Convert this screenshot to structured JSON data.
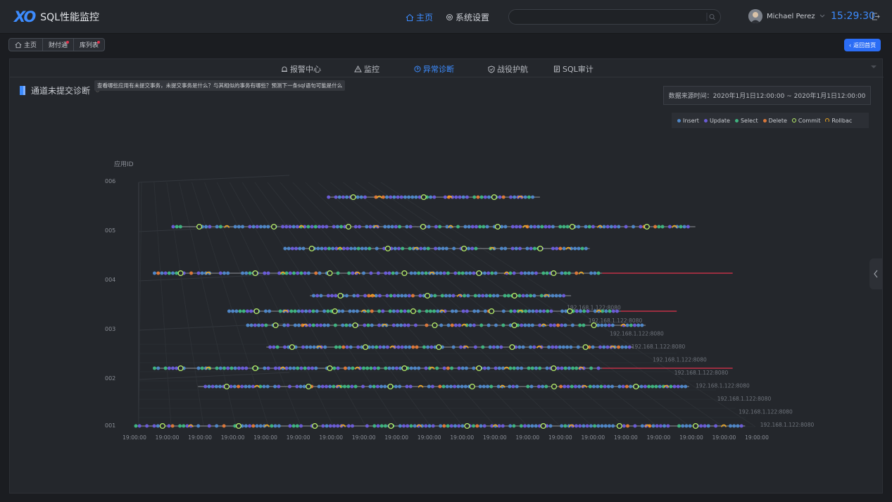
{
  "app": {
    "logo": "XO",
    "title": "SQL性能监控"
  },
  "nav": [
    {
      "label": "主页",
      "icon": "home-icon",
      "active": true
    },
    {
      "label": "系统设置",
      "icon": "gear-icon",
      "active": false
    }
  ],
  "search": {
    "placeholder": ""
  },
  "user": {
    "name": "Michael Perez",
    "time": "15:29:30"
  },
  "breadcrumb": [
    "主页",
    "财付通",
    "库列表"
  ],
  "back_label": "返回首页",
  "tabs": [
    {
      "label": "报警中心",
      "icon": "alarm-icon",
      "active": false
    },
    {
      "label": "监控",
      "icon": "warning-icon",
      "active": false
    },
    {
      "label": "异常诊断",
      "icon": "diagnosis-icon",
      "active": true
    },
    {
      "label": "战役护航",
      "icon": "shield-icon",
      "active": false
    },
    {
      "label": "SQL审计",
      "icon": "audit-icon",
      "active": false
    }
  ],
  "section": {
    "title": "通道未提交诊断",
    "tooltip": "查看哪些应用有未提交事务，未提交事务是什么？与其相似的事务有哪些？预测下一条sql语句可能是什么"
  },
  "range_text": "数据来源时间：2020年1月1日12:00:00 ~ 2020年1月1日12:00:00",
  "colors": {
    "accent": "#3d8cff",
    "insert": "#4f86c6",
    "update": "#6b5cd6",
    "select": "#3fb27f",
    "delete": "#d9773a",
    "commit": "#b8f06a",
    "rollback": "#f0a820",
    "alert": "#e0334c"
  },
  "chart_data": {
    "type": "scatter",
    "ylabel": "应用ID",
    "y_ticks": [
      "006",
      "005",
      "004",
      "003",
      "002",
      "001"
    ],
    "x_ticks": [
      "19:00:00",
      "19:00:00",
      "19:00:00",
      "19:00:00",
      "19:00:00",
      "19:00:00",
      "19:00:00",
      "19:00:00",
      "19:00:00",
      "19:00:00",
      "19:00:00",
      "19:00:00",
      "19:00:00",
      "19:00:00",
      "19:00:00",
      "19:00:00",
      "19:00:00",
      "19:00:00",
      "19:00:00",
      "19:00:00"
    ],
    "depth_labels": [
      "192.168.1.122:8080",
      "192.168.1.122:8080",
      "192.168.1.122:8080",
      "192.168.1.122:8080",
      "192.168.1.122:8080",
      "192.168.1.122:8080",
      "192.168.1.122:8080",
      "192.168.1.122:8080",
      "192.168.1.122:8080",
      "192.168.1.122:8080"
    ],
    "legend": [
      {
        "name": "Insert",
        "key": "insert"
      },
      {
        "name": "Update",
        "key": "update"
      },
      {
        "name": "Select",
        "key": "select"
      },
      {
        "name": "Delete",
        "key": "delete"
      },
      {
        "name": "Commit",
        "key": "commit"
      },
      {
        "name": "Rollbac",
        "key": "rollback"
      }
    ],
    "series": [
      {
        "start": 0.31,
        "end": 0.65,
        "alert_to": null
      },
      {
        "start": 0.06,
        "end": 0.9,
        "alert_to": null
      },
      {
        "start": 0.24,
        "end": 0.73,
        "alert_to": null
      },
      {
        "start": 0.03,
        "end": 0.75,
        "alert_to": 0.96
      },
      {
        "start": 0.28,
        "end": 0.7,
        "alert_to": null
      },
      {
        "start": 0.15,
        "end": 0.78,
        "alert_to": 0.87
      },
      {
        "start": 0.18,
        "end": 0.82,
        "alert_to": null
      },
      {
        "start": 0.21,
        "end": 0.8,
        "alert_to": null
      },
      {
        "start": 0.03,
        "end": 0.75,
        "alert_to": 0.96
      },
      {
        "start": 0.1,
        "end": 0.89,
        "alert_to": null
      },
      {
        "start": 0.0,
        "end": 0.98,
        "alert_to": null
      }
    ]
  }
}
